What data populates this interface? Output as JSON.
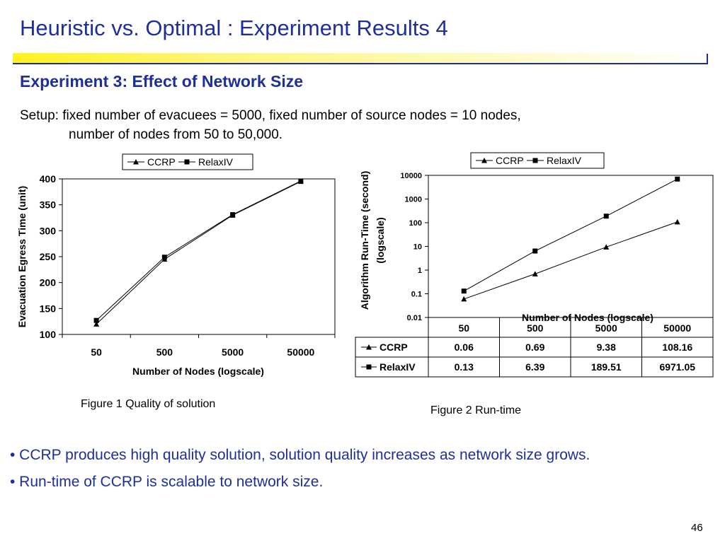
{
  "slide": {
    "title": "Heuristic vs. Optimal : Experiment Results 4",
    "subtitle": "Experiment 3: Effect of Network Size",
    "setup_line1": "Setup: fixed number of evacuees = 5000, fixed number of source nodes = 10 nodes,",
    "setup_line2": "number of nodes from  50 to 50,000.",
    "caption1": "Figure 1 Quality of solution",
    "caption2": "Figure 2  Run-time",
    "bullets": [
      "• CCRP produces high quality solution, solution quality increases as network size grows.",
      "• Run-time of CCRP is scalable to network size."
    ],
    "page_number": "46"
  },
  "chart_data": [
    {
      "type": "line",
      "categories": [
        "50",
        "500",
        "5000",
        "50000"
      ],
      "series": [
        {
          "name": "CCRP",
          "marker": "triangle",
          "values": [
            120,
            245,
            330,
            395
          ]
        },
        {
          "name": "RelaxIV",
          "marker": "square",
          "values": [
            127,
            249,
            331,
            396
          ]
        }
      ],
      "xlabel": "Number of Nodes (logscale)",
      "ylabel": "Evacuation Egress Time (unit)",
      "ylim": [
        100,
        400
      ],
      "yticks": [
        "100",
        "150",
        "200",
        "250",
        "300",
        "350",
        "400"
      ],
      "grid": false,
      "legend": "top"
    },
    {
      "type": "line",
      "categories": [
        "50",
        "500",
        "5000",
        "50000"
      ],
      "series": [
        {
          "name": "CCRP",
          "marker": "triangle",
          "values": [
            0.06,
            0.69,
            9.38,
            108.16
          ],
          "labels": [
            "0.06",
            "0.69",
            "9.38",
            "108.16"
          ]
        },
        {
          "name": "RelaxIV",
          "marker": "square",
          "values": [
            0.13,
            6.39,
            189.51,
            6971.05
          ],
          "labels": [
            "0.13",
            "6.39",
            "189.51",
            "6971.05"
          ]
        }
      ],
      "xlabel": "Number of Nodes (logscale)",
      "ylabel_line1": "Algorithm Run-Time (second)",
      "ylabel_line2": "(logscale)",
      "yscale": "log",
      "ylim": [
        0.01,
        10000
      ],
      "yticks": [
        "0.01",
        "0.1",
        "1",
        "10",
        "100",
        "1000",
        "10000"
      ],
      "grid": false,
      "legend": "top",
      "data_table": true
    }
  ]
}
